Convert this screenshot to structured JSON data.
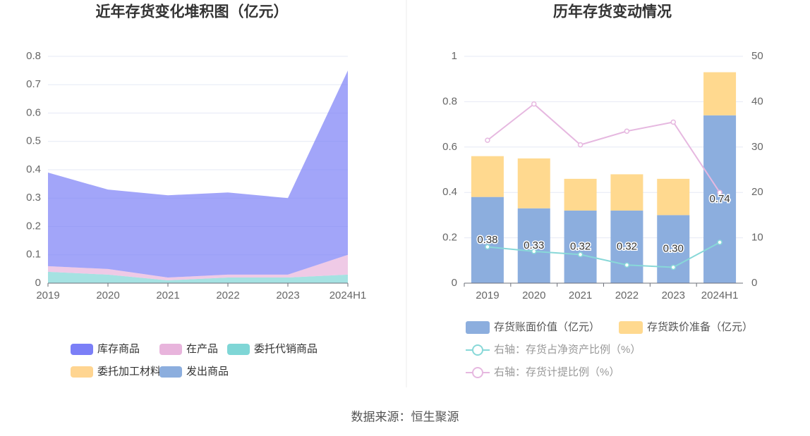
{
  "chart_data": [
    {
      "type": "stacked_area",
      "title": "近年存货变化堆积图（亿元）",
      "categories": [
        "2019",
        "2020",
        "2021",
        "2022",
        "2023",
        "2024H1"
      ],
      "series": [
        {
          "name": "库存商品",
          "color": "#7b7ff7",
          "values": [
            0.33,
            0.28,
            0.29,
            0.29,
            0.27,
            0.65
          ]
        },
        {
          "name": "在产品",
          "color": "#e8b4dc",
          "values": [
            0.02,
            0.02,
            0.01,
            0.01,
            0.01,
            0.07
          ]
        },
        {
          "name": "委托代销商品",
          "color": "#7fd6d6",
          "values": [
            0.04,
            0.03,
            0.01,
            0.02,
            0.02,
            0.03
          ]
        },
        {
          "name": "委托加工材料",
          "color": "#ffd591",
          "values": [
            0,
            0,
            0,
            0,
            0,
            0
          ]
        },
        {
          "name": "发出商品",
          "color": "#8caede",
          "values": [
            0,
            0,
            0,
            0,
            0,
            0
          ]
        }
      ],
      "ylim": [
        0,
        0.8
      ],
      "yticks": [
        0,
        0.1,
        0.2,
        0.3,
        0.4,
        0.5,
        0.6,
        0.7,
        0.8
      ],
      "grid": true
    },
    {
      "type": "bar_line",
      "title": "历年存货变动情况",
      "categories": [
        "2019",
        "2020",
        "2021",
        "2022",
        "2023",
        "2024H1"
      ],
      "series": [
        {
          "name": "存货账面价值（亿元）",
          "color": "#8caede",
          "values": [
            0.38,
            0.33,
            0.32,
            0.32,
            0.3,
            0.74
          ],
          "value_labels": [
            "0.38",
            "0.33",
            "0.32",
            "0.32",
            "0.30",
            "0.74"
          ]
        },
        {
          "name": "存货跌价准备（亿元）",
          "color": "#ffd98f",
          "values": [
            0.18,
            0.22,
            0.14,
            0.16,
            0.16,
            0.19
          ]
        },
        {
          "name": "右轴：存货占净资产比例（%）",
          "color": "#88d8d8",
          "axis": "y2",
          "values": [
            8,
            7,
            6.3,
            4,
            3.5,
            9
          ]
        },
        {
          "name": "右轴：存货计提比例（%）",
          "color": "#e6b8e0",
          "axis": "y2",
          "values": [
            31.5,
            39.5,
            30.5,
            33.5,
            35.5,
            20
          ]
        }
      ],
      "ylim": [
        0,
        1
      ],
      "yticks": [
        0,
        0.2,
        0.4,
        0.6,
        0.8,
        1
      ],
      "y2lim": [
        0,
        50
      ],
      "y2ticks": [
        0,
        10,
        20,
        30,
        40,
        50
      ],
      "grid": true
    }
  ],
  "source": "数据来源：恒生聚源"
}
